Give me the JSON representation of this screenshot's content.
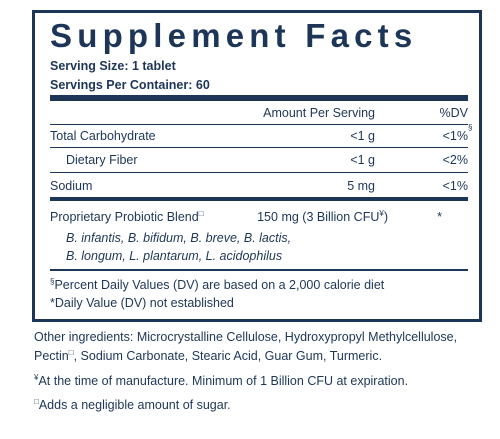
{
  "header": {
    "title": "Supplement Facts",
    "serving_size": "Serving Size: 1 tablet",
    "servings": "Servings Per Container: 60"
  },
  "table": {
    "columns": [
      "Amount Per Serving",
      "%DV"
    ],
    "rows": [
      {
        "name": "Total Carbohydrate",
        "amount": "<1 g",
        "dv": "<1%",
        "dv_mark": "§"
      },
      {
        "name": "Dietary Fiber",
        "amount": "<1 g",
        "dv": "<2%"
      },
      {
        "name": "Sodium",
        "amount": "5 mg",
        "dv": "<1%"
      }
    ]
  },
  "blend": {
    "name": "Proprietary Probiotic Blend",
    "name_mark": "□",
    "amount": "150 mg (3 Billion CFU",
    "amount_mark": "¥",
    "amount_end": ")",
    "dv": "*",
    "strains": [
      "B. infantis, B. bifidum, B. breve, B. lactis,",
      "B. longum, L. plantarum, L. acidophilus"
    ]
  },
  "footnotes": [
    {
      "mark": "§",
      "text": "Percent Daily Values (DV) are based on a 2,000 calorie diet"
    },
    {
      "text": "*Daily Value (DV) not established"
    }
  ],
  "ingredients": {
    "line1": "Other ingredients: Microcrystalline Cellulose, Hydroxypropyl Methylcellulose,",
    "line2_start": "Pectin",
    "line2_mark": "□",
    "line2_end": ", Sodium Carbonate, Stearic Acid, Guar Gum, Turmeric."
  },
  "notes": [
    {
      "mark": "¥",
      "text": "At the time of manufacture. Minimum of 1 Billion CFU at expiration."
    },
    {
      "mark": "□",
      "text": "Adds a negligible amount of sugar."
    }
  ]
}
